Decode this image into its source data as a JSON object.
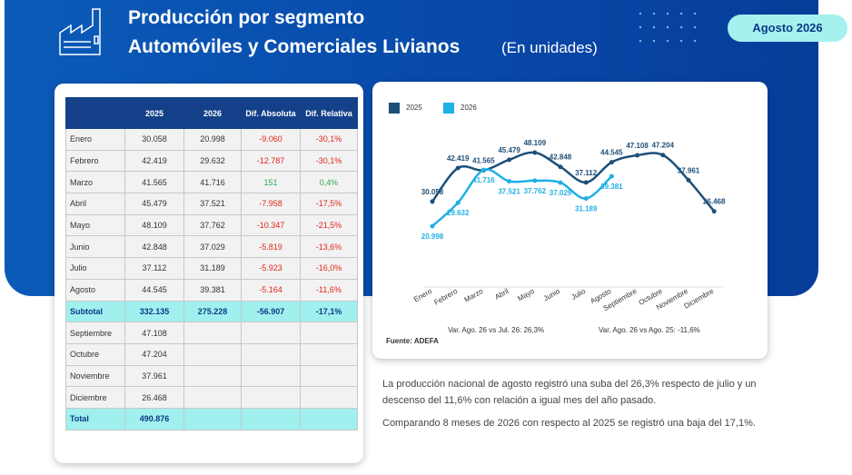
{
  "header": {
    "title": "Producción por segmento",
    "subtitle": "Automóviles y Comerciales Livianos",
    "unit": "(En unidades)",
    "badge": "Agosto 2026"
  },
  "table": {
    "header": [
      "2025",
      "2026",
      "Dif. Absoluta",
      "Dif. Relativa"
    ],
    "rows": [
      [
        "Enero",
        "30.058",
        "20.998",
        "-9.060",
        "-30,1%"
      ],
      [
        "Febrero",
        "42.419",
        "29.632",
        "-12.787",
        "-30,1%"
      ],
      [
        "Marzo",
        "41.565",
        "41.716",
        "151",
        "0,4%"
      ],
      [
        "Abril",
        "45.479",
        "37.521",
        "-7.958",
        "-17,5%"
      ],
      [
        "Mayo",
        "48.109",
        "37.762",
        "-10.347",
        "-21,5%"
      ],
      [
        "Junio",
        "42.848",
        "37.029",
        "-5.819",
        "-13,6%"
      ],
      [
        "Julio",
        "37.112",
        "31.189",
        "-5.923",
        "-16,0%"
      ],
      [
        "Agosto",
        "44.545",
        "39.381",
        "-5.164",
        "-11,6%"
      ]
    ],
    "subtotal": [
      "Subtotal",
      "332.135",
      "275.228",
      "-56.907",
      "-17,1%"
    ],
    "rows_after": [
      [
        "Septiembre",
        "47.108"
      ],
      [
        "Octubre",
        "47.204"
      ],
      [
        "Noviembre",
        "37.961"
      ],
      [
        "Diciembre",
        "26.468"
      ]
    ],
    "total": [
      "Total",
      "490.876"
    ]
  },
  "chart_data": {
    "type": "line",
    "categories": [
      "Enero",
      "Febrero",
      "Marzo",
      "Abril",
      "Mayo",
      "Junio",
      "Julio",
      "Agosto",
      "Septiembre",
      "Octubre",
      "Noviembre",
      "Diciembre"
    ],
    "series": [
      {
        "name": "2025",
        "color": "#1d4f78",
        "values": [
          30058,
          42419,
          41565,
          45479,
          48109,
          42848,
          37112,
          44545,
          47108,
          47204,
          37961,
          26468
        ],
        "value_labels": [
          "30.058",
          "42.419",
          "41.565",
          "45.479",
          "48.109",
          "42.848",
          "37.112",
          "44.545",
          "47.108",
          "47.204",
          "37.961",
          "26.468"
        ]
      },
      {
        "name": "2026",
        "color": "#1fb0e6",
        "values": [
          20998,
          29632,
          41716,
          37521,
          37762,
          37029,
          31189,
          39381,
          null,
          null,
          null,
          null
        ],
        "value_labels": [
          "20.998",
          "29.632",
          "41.716",
          "37.521",
          "37.762",
          "37.029",
          "31.189",
          "39.381",
          null,
          null,
          null,
          null
        ]
      }
    ],
    "annotations": [
      "Var. Ago. 26 vs Jul. 26: 26,3%",
      "Var. Ago. 26 vs Ago. 25: -11,6%"
    ],
    "source": "Fuente: ADEFA"
  },
  "notes": [
    "La producción nacional de agosto registró una suba del 26,3% respecto de julio y un descenso del 11,6% con relación a igual mes del año pasado.",
    "Comparando 8 meses de 2026 con respecto al 2025 se registró una baja del 17,1%."
  ]
}
